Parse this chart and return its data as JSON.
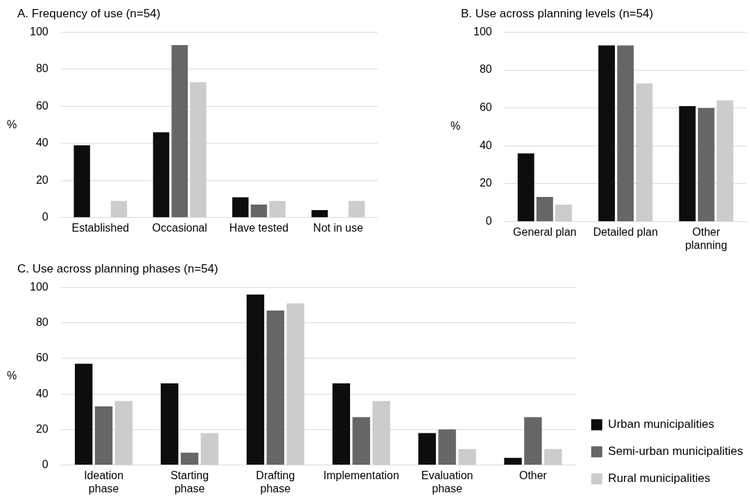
{
  "chart_data": [
    {
      "type": "bar",
      "title": "A. Frequency of use (n=54)",
      "ylabel": "%",
      "categories": [
        "Established",
        "Occasional",
        "Have tested",
        "Not in use"
      ],
      "series": [
        {
          "color": "#0d0d0d",
          "values": [
            39,
            46,
            11,
            4
          ]
        },
        {
          "color": "#666666",
          "values": [
            0,
            93,
            7,
            0
          ]
        },
        {
          "color": "#cccccc",
          "values": [
            9,
            73,
            9,
            9
          ]
        }
      ],
      "ylim": [
        0,
        100
      ],
      "yticks": [
        0,
        20,
        40,
        60,
        80,
        100
      ],
      "grid": "y"
    },
    {
      "type": "bar",
      "title": "B. Use across planning levels (n=54)",
      "ylabel": "%",
      "categories": [
        "General plan",
        "Detailed plan",
        "Other planning"
      ],
      "series": [
        {
          "color": "#0d0d0d",
          "values": [
            36,
            93,
            61
          ]
        },
        {
          "color": "#666666",
          "values": [
            13,
            93,
            60
          ]
        },
        {
          "color": "#cccccc",
          "values": [
            9,
            73,
            64
          ]
        }
      ],
      "ylim": [
        0,
        100
      ],
      "yticks": [
        0,
        20,
        40,
        60,
        80,
        100
      ],
      "grid": "y"
    },
    {
      "type": "bar",
      "title": "C. Use across planning phases (n=54)",
      "ylabel": "%",
      "categories": [
        "Ideation phase",
        "Starting phase",
        "Drafting phase",
        "Implementation",
        "Evaluation phase",
        "Other"
      ],
      "series": [
        {
          "name": "Urban municipalities",
          "color": "#0d0d0d",
          "values": [
            57,
            46,
            96,
            46,
            18,
            4
          ]
        },
        {
          "name": "Semi-urban municipalities",
          "color": "#666666",
          "values": [
            33,
            7,
            87,
            27,
            20,
            27
          ]
        },
        {
          "name": "Rural municipalities",
          "color": "#cccccc",
          "values": [
            36,
            18,
            91,
            36,
            9,
            9
          ]
        }
      ],
      "ylim": [
        0,
        100
      ],
      "yticks": [
        0,
        20,
        40,
        60,
        80,
        100
      ],
      "grid": "y",
      "legend": "bottom right"
    }
  ]
}
